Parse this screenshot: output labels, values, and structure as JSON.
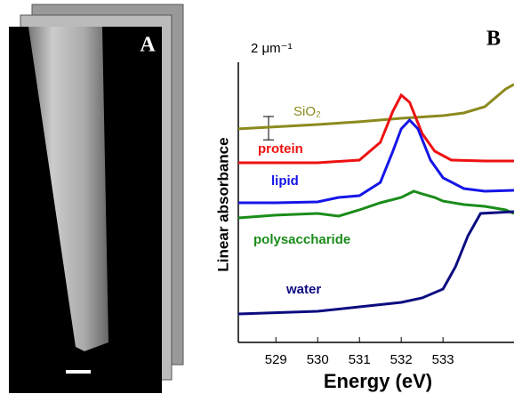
{
  "chart_data": {
    "type": "line",
    "panel_labels": [
      "A",
      "B"
    ],
    "xlabel": "Energy (eV)",
    "ylabel": "Linear absorbance",
    "scale_bar": {
      "label": "2 μm⁻¹",
      "value": 2
    },
    "xlim": [
      528.1,
      534.7
    ],
    "xticks": [
      529,
      530,
      531,
      532,
      533
    ],
    "ylim": [
      0,
      24
    ],
    "series": [
      {
        "name": "SiO₂",
        "color": "#8c8a1e",
        "x": [
          528.1,
          530,
          531,
          532,
          533,
          533.5,
          534,
          534.5,
          534.7
        ],
        "values": [
          18.29,
          18.67,
          18.9,
          19.2,
          19.43,
          19.66,
          20.19,
          21.71,
          22.1
        ]
      },
      {
        "name": "protein",
        "color": "#ee1111",
        "x": [
          528.1,
          530,
          531,
          531.5,
          531.8,
          532,
          532.2,
          532.5,
          532.8,
          533.2,
          534,
          534.7
        ],
        "values": [
          15.39,
          15.39,
          15.62,
          17.14,
          19.81,
          21.18,
          20.57,
          17.9,
          16.38,
          15.62,
          15.54,
          15.54
        ]
      },
      {
        "name": "lipid",
        "color": "#1515e8",
        "x": [
          528.1,
          529,
          530,
          530.5,
          531,
          531.5,
          531.8,
          532,
          532.2,
          532.4,
          532.7,
          533,
          533.5,
          534,
          534.7
        ],
        "values": [
          11.96,
          11.96,
          12.04,
          12.42,
          12.57,
          13.71,
          16.38,
          18.29,
          19.05,
          18.29,
          15.62,
          14.1,
          13.18,
          12.95,
          13.03
        ]
      },
      {
        "name": "polysaccharide",
        "color": "#1a8c1a",
        "x": [
          528.1,
          529,
          530,
          530.5,
          531,
          531.5,
          532,
          532.3,
          532.5,
          532.8,
          533,
          533.5,
          534,
          534.5,
          534.7
        ],
        "values": [
          10.67,
          10.9,
          11.05,
          10.82,
          11.35,
          11.96,
          12.42,
          12.95,
          12.72,
          12.42,
          12.11,
          11.81,
          11.66,
          11.35,
          11.05
        ]
      },
      {
        "name": "water",
        "color": "#0c0c80",
        "x": [
          528.1,
          530,
          531,
          532,
          532.5,
          533,
          533.3,
          533.6,
          533.9,
          534.7
        ],
        "values": [
          2.44,
          2.67,
          3.05,
          3.43,
          3.81,
          4.57,
          6.48,
          9.14,
          11.05,
          11.2
        ]
      }
    ]
  }
}
